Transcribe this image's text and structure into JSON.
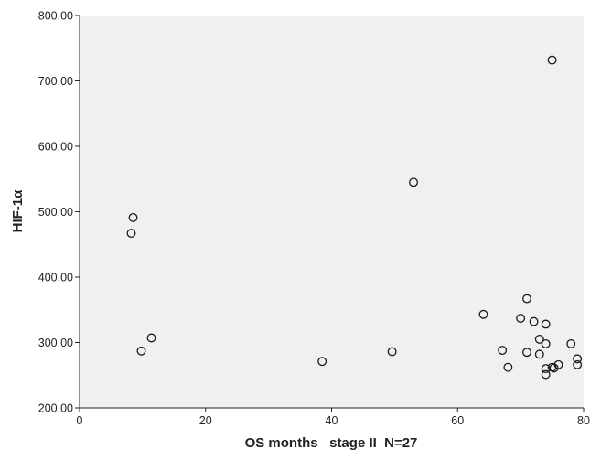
{
  "chart_data": {
    "type": "scatter",
    "title": "",
    "xlabel": "OS months   stage II  N=27",
    "ylabel": "HIF-1α",
    "xlim": [
      0,
      80
    ],
    "ylim": [
      200,
      800
    ],
    "x_ticks": [
      0,
      20,
      40,
      60,
      80
    ],
    "x_tick_labels": [
      "0",
      "20",
      "40",
      "60",
      "80"
    ],
    "y_ticks": [
      200,
      300,
      400,
      500,
      600,
      700,
      800
    ],
    "y_tick_labels": [
      "200.00",
      "300.00",
      "400.00",
      "500.00",
      "600.00",
      "700.00",
      "800.00"
    ],
    "grid": false,
    "legend": "none",
    "colors": {
      "plot_background": "#f0f0f0",
      "marker_stroke": "#1a1a1a",
      "axis": "#222222"
    },
    "marker": "hollow-circle",
    "series": [
      {
        "points": [
          {
            "x": 8.5,
            "y": 491
          },
          {
            "x": 8.2,
            "y": 467
          },
          {
            "x": 9.8,
            "y": 287
          },
          {
            "x": 11.4,
            "y": 307
          },
          {
            "x": 38.5,
            "y": 271
          },
          {
            "x": 49.6,
            "y": 286
          },
          {
            "x": 53.0,
            "y": 545
          },
          {
            "x": 64.1,
            "y": 343
          },
          {
            "x": 67.1,
            "y": 288
          },
          {
            "x": 68.0,
            "y": 262
          },
          {
            "x": 70.0,
            "y": 337
          },
          {
            "x": 71.0,
            "y": 367
          },
          {
            "x": 71.0,
            "y": 285
          },
          {
            "x": 72.1,
            "y": 332
          },
          {
            "x": 73.0,
            "y": 305
          },
          {
            "x": 73.0,
            "y": 282
          },
          {
            "x": 74.0,
            "y": 328
          },
          {
            "x": 74.0,
            "y": 298
          },
          {
            "x": 74.0,
            "y": 260
          },
          {
            "x": 74.0,
            "y": 251
          },
          {
            "x": 75.0,
            "y": 732
          },
          {
            "x": 75.0,
            "y": 262
          },
          {
            "x": 75.3,
            "y": 261
          },
          {
            "x": 76.0,
            "y": 266
          },
          {
            "x": 78.0,
            "y": 298
          },
          {
            "x": 79.0,
            "y": 275
          },
          {
            "x": 79.0,
            "y": 266
          }
        ]
      }
    ]
  }
}
